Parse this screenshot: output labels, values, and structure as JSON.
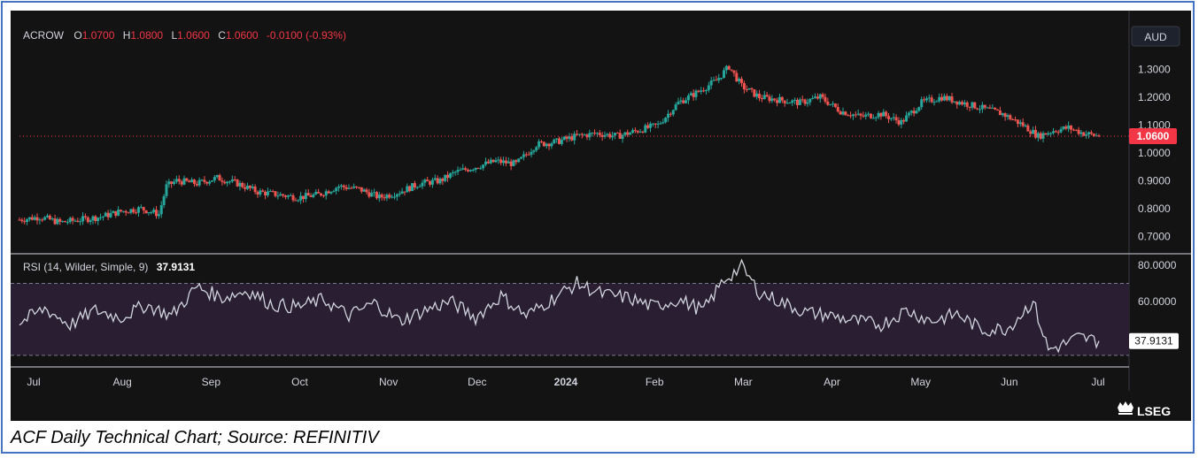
{
  "header": {
    "symbol": "ACROW",
    "o_label": "O",
    "o_value": "1.0700",
    "h_label": "H",
    "h_value": "1.0800",
    "l_label": "L",
    "l_value": "1.0600",
    "c_label": "C",
    "c_value": "1.0600",
    "change": "-0.0100 (-0.93%)",
    "currency": "AUD"
  },
  "colors": {
    "up": "#26a69a",
    "down": "#ef5350",
    "background": "#131313",
    "ohlc_values": "#f23645",
    "rsi_line": "#d1d4dc",
    "rsi_band": "#2a1e33",
    "price_tag": "#f23645",
    "brand": "#ffffff",
    "caption_border": "#4472c4"
  },
  "rsi": {
    "label": "RSI (14, Wilder, Simple, 9)",
    "value": "37.9131",
    "value_tag": "37.9131"
  },
  "price_tag": "1.0600",
  "brand": {
    "text": "LSEG",
    "icon": "lseg-logo-icon"
  },
  "caption": "ACF Daily Technical Chart; Source: REFINITIV",
  "chart_data": [
    {
      "type": "candlestick",
      "ylim": [
        0.66,
        1.39
      ],
      "ytick_labels": [
        "1.3000",
        "1.2000",
        "1.1000",
        "1.0000",
        "0.9000",
        "0.8000",
        "0.7000"
      ],
      "yticks": [
        1.3,
        1.2,
        1.1,
        1.0,
        0.9,
        0.8,
        0.7
      ],
      "last_price": 1.06,
      "xtick_labels": [
        "Jul",
        "Aug",
        "Sep",
        "Oct",
        "Nov",
        "Dec",
        "2024",
        "Feb",
        "Mar",
        "Apr",
        "May",
        "Jun",
        "Jul"
      ],
      "approx_close_path": [
        [
          0,
          0.76
        ],
        [
          8,
          0.77
        ],
        [
          16,
          0.75
        ],
        [
          24,
          0.76
        ],
        [
          32,
          0.77
        ],
        [
          40,
          0.79
        ],
        [
          48,
          0.8
        ],
        [
          55,
          0.78
        ],
        [
          58,
          0.88
        ],
        [
          62,
          0.9
        ],
        [
          70,
          0.89
        ],
        [
          78,
          0.91
        ],
        [
          86,
          0.89
        ],
        [
          94,
          0.86
        ],
        [
          102,
          0.85
        ],
        [
          110,
          0.84
        ],
        [
          118,
          0.85
        ],
        [
          126,
          0.88
        ],
        [
          134,
          0.87
        ],
        [
          142,
          0.84
        ],
        [
          150,
          0.86
        ],
        [
          158,
          0.89
        ],
        [
          166,
          0.9
        ],
        [
          172,
          0.93
        ],
        [
          180,
          0.95
        ],
        [
          188,
          0.97
        ],
        [
          196,
          0.96
        ],
        [
          204,
          1.03
        ],
        [
          212,
          1.04
        ],
        [
          220,
          1.06
        ],
        [
          228,
          1.07
        ],
        [
          236,
          1.06
        ],
        [
          244,
          1.08
        ],
        [
          252,
          1.1
        ],
        [
          260,
          1.18
        ],
        [
          268,
          1.22
        ],
        [
          275,
          1.26
        ],
        [
          280,
          1.31
        ],
        [
          285,
          1.24
        ],
        [
          292,
          1.2
        ],
        [
          300,
          1.19
        ],
        [
          308,
          1.18
        ],
        [
          316,
          1.2
        ],
        [
          324,
          1.15
        ],
        [
          332,
          1.13
        ],
        [
          340,
          1.14
        ],
        [
          348,
          1.11
        ],
        [
          356,
          1.18
        ],
        [
          364,
          1.2
        ],
        [
          372,
          1.18
        ],
        [
          380,
          1.16
        ],
        [
          388,
          1.14
        ],
        [
          396,
          1.1
        ],
        [
          402,
          1.06
        ],
        [
          408,
          1.08
        ],
        [
          414,
          1.09
        ],
        [
          420,
          1.07
        ],
        [
          426,
          1.06
        ]
      ]
    },
    {
      "type": "line",
      "name": "RSI",
      "ylim": [
        25,
        84
      ],
      "ytick_labels": [
        "80.0000",
        "60.0000"
      ],
      "yticks": [
        80,
        60
      ],
      "bands": [
        70,
        30
      ],
      "x": [
        0,
        10,
        20,
        30,
        40,
        50,
        60,
        70,
        80,
        90,
        100,
        110,
        120,
        130,
        140,
        150,
        160,
        170,
        180,
        190,
        200,
        210,
        220,
        230,
        240,
        250,
        260,
        270,
        278,
        285,
        292,
        300,
        310,
        320,
        330,
        340,
        350,
        360,
        370,
        380,
        390,
        400,
        406,
        412,
        418,
        426
      ],
      "values": [
        48,
        56,
        47,
        55,
        51,
        58,
        52,
        68,
        62,
        66,
        58,
        57,
        61,
        52,
        59,
        49,
        55,
        60,
        51,
        63,
        52,
        61,
        70,
        64,
        62,
        57,
        61,
        55,
        72,
        79,
        65,
        60,
        54,
        52,
        49,
        47,
        55,
        49,
        53,
        44,
        45,
        60,
        33,
        36,
        40,
        38
      ]
    }
  ]
}
